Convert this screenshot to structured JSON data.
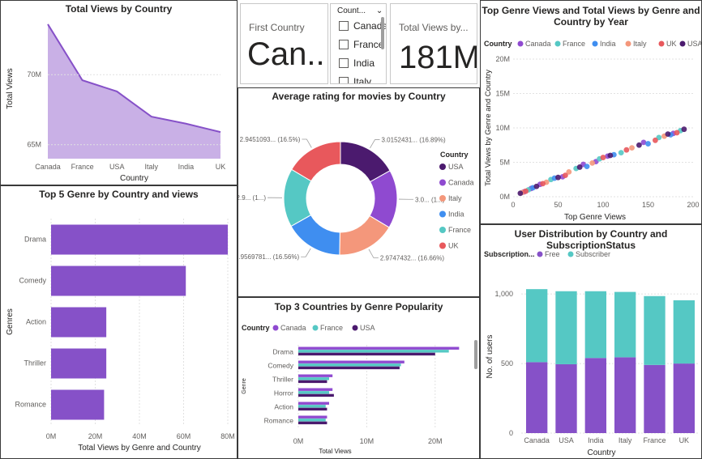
{
  "colors": {
    "purple": "#8651c8",
    "area_fill": "#c9b0e6",
    "teal": "#55c8c4",
    "dark_purple": "#4b1a6e",
    "canada": "#8f4ad0",
    "france": "#55c8c4",
    "india": "#3f8ef0",
    "italy": "#f4977b",
    "uk": "#e8585c",
    "usa": "#4b1a6e"
  },
  "card_first_country": {
    "label": "First Country",
    "value": "Can..."
  },
  "slicer": {
    "header": "Count...",
    "chevron": "⌄",
    "items": [
      "Canada",
      "France",
      "India",
      "Italy"
    ]
  },
  "card_total_views": {
    "label": "Total Views by...",
    "value": "181M"
  },
  "charts": {
    "views_by_country": {
      "title": "Total Views by Country",
      "chart_data": {
        "type": "area",
        "categories": [
          "Canada",
          "France",
          "USA",
          "Italy",
          "India",
          "UK"
        ],
        "values": [
          73.6,
          69.6,
          68.8,
          67.0,
          66.5,
          65.9
        ],
        "xlabel": "Country",
        "ylabel": "Total Views",
        "y_ticks": [
          "65M",
          "70M"
        ],
        "y_tick_values": [
          65,
          70
        ],
        "ylim": [
          64,
          74
        ]
      }
    },
    "top5_genre": {
      "title": "Top 5 Genre by Country and views",
      "chart_data": {
        "type": "bar",
        "categories": [
          "Drama",
          "Comedy",
          "Action",
          "Thriller",
          "Romance"
        ],
        "values": [
          80,
          61,
          25,
          25,
          24
        ],
        "xlabel": "Total Views by Genre and Country",
        "ylabel": "Genres",
        "x_ticks": [
          "0M",
          "20M",
          "40M",
          "60M",
          "80M"
        ],
        "x_tick_values": [
          0,
          20,
          40,
          60,
          80
        ],
        "xlim": [
          0,
          80
        ]
      }
    },
    "avg_rating": {
      "title": "Average rating for movies by Country",
      "legend_title": "Country",
      "chart_data": {
        "type": "pie",
        "labels": [
          "USA",
          "Canada",
          "Italy",
          "India",
          "France",
          "UK"
        ],
        "values": [
          16.89,
          16.7,
          16.66,
          16.56,
          16.7,
          16.5
        ],
        "slice_labels": [
          "3.0152431... (16.89%)",
          "3.0... (1...)",
          "2.9747432... (16.66%)",
          "2.9569781... (16.56%)",
          "2.9... (1...)",
          "2.9451093... (16.5%)"
        ]
      }
    },
    "top3_genre": {
      "title": "Top 3 Countries by Genre Popularity",
      "legend_title": "Country",
      "chart_data": {
        "type": "bar",
        "categories": [
          "Drama",
          "Comedy",
          "Thriller",
          "Horror",
          "Action",
          "Romance"
        ],
        "series": [
          {
            "name": "Canada",
            "values": [
              23.5,
              15.5,
              5.0,
              5.0,
              4.5,
              4.2
            ]
          },
          {
            "name": "France",
            "values": [
              22.0,
              15.0,
              4.5,
              4.5,
              4.0,
              4.0
            ]
          },
          {
            "name": "USA",
            "values": [
              20.0,
              14.8,
              4.2,
              5.2,
              4.2,
              4.2
            ]
          }
        ],
        "xlabel": "Total Views",
        "ylabel": "Genre",
        "x_ticks": [
          "0M",
          "10M",
          "20M"
        ],
        "x_tick_values": [
          0,
          10,
          20
        ],
        "xlim": [
          0,
          25
        ]
      }
    },
    "scatter": {
      "title_line1": "Top Genre Views and Total Views by Genre and",
      "title_line2": "Country by Year",
      "legend_title": "Country",
      "chart_data": {
        "type": "scatter",
        "xlabel": "Top Genre Views",
        "ylabel": "Total Views by Genre and Country",
        "x_ticks": [
          "0",
          "50",
          "100",
          "150",
          "200"
        ],
        "x_tick_values": [
          0,
          50,
          100,
          150,
          200
        ],
        "xlim": [
          0,
          200
        ],
        "y_ticks": [
          "0M",
          "5M",
          "10M",
          "15M",
          "20M"
        ],
        "y_tick_values": [
          0,
          5,
          10,
          15,
          20
        ],
        "ylim": [
          0,
          20
        ],
        "series": [
          {
            "name": "Canada",
            "points": [
              [
                12,
                0.7
              ],
              [
                30,
                1.8
              ],
              [
                55,
                2.9
              ],
              [
                78,
                4.7
              ],
              [
                105,
                5.9
              ],
              [
                145,
                7.9
              ],
              [
                178,
                9.2
              ],
              [
                20,
                1.2
              ],
              [
                92,
                5.1
              ]
            ]
          },
          {
            "name": "France",
            "points": [
              [
                17,
                1.0
              ],
              [
                42,
                2.5
              ],
              [
                70,
                4.1
              ],
              [
                96,
                5.5
              ],
              [
                120,
                6.4
              ],
              [
                162,
                8.6
              ],
              [
                186,
                9.6
              ]
            ]
          },
          {
            "name": "India",
            "points": [
              [
                22,
                1.3
              ],
              [
                46,
                2.7
              ],
              [
                82,
                4.4
              ],
              [
                112,
                6.1
              ],
              [
                150,
                7.7
              ],
              [
                175,
                9.0
              ]
            ]
          },
          {
            "name": "Italy",
            "points": [
              [
                10,
                0.6
              ],
              [
                37,
                2.1
              ],
              [
                62,
                3.6
              ],
              [
                88,
                4.9
              ],
              [
                132,
                7.1
              ],
              [
                168,
                8.8
              ]
            ]
          },
          {
            "name": "UK",
            "points": [
              [
                14,
                0.8
              ],
              [
                33,
                1.9
              ],
              [
                58,
                3.1
              ],
              [
                100,
                5.7
              ],
              [
                126,
                6.8
              ],
              [
                158,
                8.2
              ],
              [
                182,
                9.3
              ]
            ]
          },
          {
            "name": "USA",
            "points": [
              [
                8,
                0.5
              ],
              [
                26,
                1.5
              ],
              [
                50,
                2.8
              ],
              [
                74,
                4.3
              ],
              [
                108,
                6.0
              ],
              [
                140,
                7.5
              ],
              [
                172,
                9.1
              ],
              [
                190,
                9.8
              ]
            ]
          }
        ]
      }
    },
    "user_dist": {
      "title": "User Distribution by Country and SubscriptionStatus",
      "legend_title": "Subscription...",
      "chart_data": {
        "type": "bar",
        "categories": [
          "Canada",
          "USA",
          "India",
          "Italy",
          "France",
          "UK"
        ],
        "series": [
          {
            "name": "Free",
            "values": [
              510,
              495,
              540,
              545,
              490,
              500
            ]
          },
          {
            "name": "Subscriber",
            "values": [
              525,
              525,
              480,
              470,
              495,
              455
            ]
          }
        ],
        "xlabel": "Country",
        "ylabel": "No. of users",
        "y_ticks": [
          "0",
          "500",
          "1,000"
        ],
        "y_tick_values": [
          0,
          500,
          1000
        ],
        "ylim": [
          0,
          1100
        ]
      }
    }
  }
}
